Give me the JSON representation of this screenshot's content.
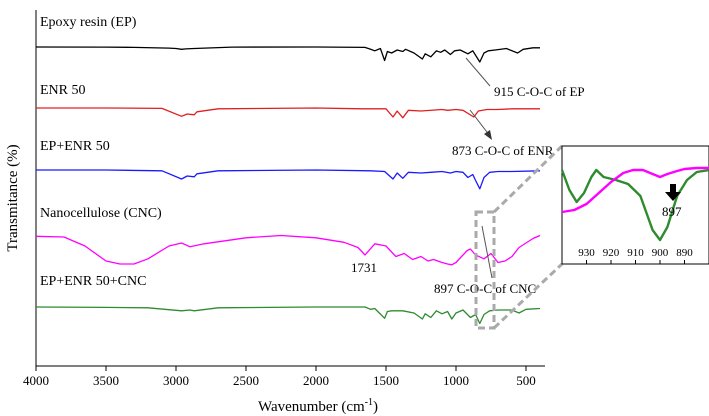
{
  "chart_data": {
    "type": "line",
    "xlabel": "Wavenumber (cm",
    "xlabel_sup": "-1",
    "xlabel_close": ")",
    "ylabel": "Transmitance (%)",
    "xlim": [
      4000,
      400
    ],
    "x_reversed": true,
    "x_ticks": [
      "4000",
      "3500",
      "3000",
      "2500",
      "2000",
      "1500",
      "1000",
      "500"
    ],
    "grid": false,
    "series": [
      {
        "name": "Epoxy resin (EP)",
        "color": "#000000",
        "points": [
          [
            4000,
            0
          ],
          [
            3500,
            -0.2
          ],
          [
            3300,
            -0.5
          ],
          [
            3050,
            -1.5
          ],
          [
            3000,
            -2
          ],
          [
            2960,
            -3
          ],
          [
            2930,
            -2.5
          ],
          [
            2870,
            -2
          ],
          [
            2600,
            -0.2
          ],
          [
            2000,
            0
          ],
          [
            1650,
            -0.5
          ],
          [
            1610,
            -3
          ],
          [
            1580,
            -5
          ],
          [
            1540,
            -2
          ],
          [
            1510,
            -18
          ],
          [
            1490,
            -6
          ],
          [
            1460,
            -8
          ],
          [
            1420,
            -4
          ],
          [
            1380,
            -6
          ],
          [
            1360,
            -3
          ],
          [
            1300,
            -8
          ],
          [
            1240,
            -16
          ],
          [
            1220,
            -9
          ],
          [
            1180,
            -13
          ],
          [
            1140,
            -5
          ],
          [
            1110,
            -7
          ],
          [
            1080,
            -4
          ],
          [
            1040,
            -10
          ],
          [
            1010,
            -5
          ],
          [
            970,
            -4
          ],
          [
            915,
            -9
          ],
          [
            880,
            -5
          ],
          [
            830,
            -20
          ],
          [
            800,
            -8
          ],
          [
            770,
            -5
          ],
          [
            720,
            -4
          ],
          [
            640,
            -2
          ],
          [
            560,
            -8
          ],
          [
            520,
            -3
          ],
          [
            450,
            -1
          ],
          [
            400,
            -1
          ]
        ]
      },
      {
        "name": "ENR 50",
        "color": "#e02020",
        "points": [
          [
            4000,
            0
          ],
          [
            3500,
            0
          ],
          [
            3100,
            -0.5
          ],
          [
            2960,
            -11
          ],
          [
            2920,
            -8
          ],
          [
            2870,
            -9
          ],
          [
            2850,
            -5
          ],
          [
            2700,
            -1
          ],
          [
            2000,
            0
          ],
          [
            1670,
            -1
          ],
          [
            1500,
            -1
          ],
          [
            1450,
            -12
          ],
          [
            1420,
            -4
          ],
          [
            1380,
            -13
          ],
          [
            1340,
            -3
          ],
          [
            1250,
            -4
          ],
          [
            1100,
            -2
          ],
          [
            1060,
            -3
          ],
          [
            1000,
            -2
          ],
          [
            950,
            -3
          ],
          [
            873,
            -12
          ],
          [
            840,
            -4
          ],
          [
            780,
            -2
          ],
          [
            700,
            -2
          ],
          [
            600,
            -1
          ],
          [
            400,
            -1
          ]
        ]
      },
      {
        "name": "EP+ENR 50",
        "color": "#1a1aff",
        "points": [
          [
            4000,
            0
          ],
          [
            3500,
            0
          ],
          [
            3100,
            -1
          ],
          [
            2960,
            -12
          ],
          [
            2920,
            -8
          ],
          [
            2870,
            -9
          ],
          [
            2850,
            -5
          ],
          [
            2700,
            -1
          ],
          [
            2000,
            0
          ],
          [
            1610,
            -1
          ],
          [
            1510,
            -2
          ],
          [
            1450,
            -12
          ],
          [
            1420,
            -4
          ],
          [
            1380,
            -11
          ],
          [
            1340,
            -3
          ],
          [
            1250,
            -4
          ],
          [
            1180,
            -3
          ],
          [
            1100,
            -2
          ],
          [
            1040,
            -4
          ],
          [
            1000,
            -2
          ],
          [
            950,
            -3
          ],
          [
            915,
            -10
          ],
          [
            880,
            -6
          ],
          [
            860,
            -14
          ],
          [
            830,
            -25
          ],
          [
            800,
            -10
          ],
          [
            760,
            -3
          ],
          [
            700,
            -2
          ],
          [
            600,
            -2
          ],
          [
            400,
            -1
          ]
        ]
      },
      {
        "name": "Nanocellulose (CNC)",
        "color": "#ff00ff",
        "points": [
          [
            4000,
            5
          ],
          [
            3800,
            4
          ],
          [
            3650,
            -8
          ],
          [
            3500,
            -28
          ],
          [
            3400,
            -32
          ],
          [
            3300,
            -32
          ],
          [
            3200,
            -25
          ],
          [
            3050,
            -8
          ],
          [
            2960,
            -4
          ],
          [
            2900,
            -9
          ],
          [
            2800,
            -5
          ],
          [
            2500,
            3
          ],
          [
            2250,
            6
          ],
          [
            2000,
            3
          ],
          [
            1800,
            -3
          ],
          [
            1700,
            -10
          ],
          [
            1650,
            -20
          ],
          [
            1580,
            -5
          ],
          [
            1500,
            -8
          ],
          [
            1430,
            -22
          ],
          [
            1370,
            -18
          ],
          [
            1310,
            -26
          ],
          [
            1250,
            -22
          ],
          [
            1200,
            -28
          ],
          [
            1160,
            -26
          ],
          [
            1100,
            -30
          ],
          [
            1060,
            -32
          ],
          [
            1030,
            -33
          ],
          [
            1000,
            -30
          ],
          [
            960,
            -22
          ],
          [
            920,
            -14
          ],
          [
            897,
            -12
          ],
          [
            860,
            -20
          ],
          [
            800,
            -25
          ],
          [
            750,
            -18
          ],
          [
            700,
            -30
          ],
          [
            650,
            -28
          ],
          [
            600,
            -22
          ],
          [
            550,
            -10
          ],
          [
            450,
            2
          ],
          [
            400,
            6
          ]
        ]
      },
      {
        "name": "EP+ENR 50+CNC",
        "color": "#2e8b2e",
        "points": [
          [
            4000,
            0
          ],
          [
            3500,
            -0.5
          ],
          [
            3200,
            -1
          ],
          [
            2960,
            -5
          ],
          [
            2900,
            -4
          ],
          [
            2870,
            -5
          ],
          [
            2700,
            -1
          ],
          [
            2000,
            0
          ],
          [
            1650,
            0
          ],
          [
            1610,
            -3
          ],
          [
            1580,
            -2
          ],
          [
            1510,
            -15
          ],
          [
            1490,
            -6
          ],
          [
            1460,
            -5
          ],
          [
            1380,
            -5
          ],
          [
            1300,
            -8
          ],
          [
            1240,
            -16
          ],
          [
            1220,
            -9
          ],
          [
            1180,
            -14
          ],
          [
            1140,
            -5
          ],
          [
            1100,
            -9
          ],
          [
            1060,
            -6
          ],
          [
            1030,
            -16
          ],
          [
            1000,
            -8
          ],
          [
            950,
            -4
          ],
          [
            897,
            -14
          ],
          [
            860,
            -10
          ],
          [
            830,
            -22
          ],
          [
            800,
            -10
          ],
          [
            760,
            -5
          ],
          [
            700,
            -4
          ],
          [
            600,
            -4
          ],
          [
            550,
            -8
          ],
          [
            500,
            -3
          ],
          [
            400,
            -2
          ]
        ]
      }
    ],
    "annotations": [
      {
        "text": "915 C-O-C of EP",
        "x": 915
      },
      {
        "text": "873 C-O-C of  ENR",
        "x": 873
      },
      {
        "text": "1731"
      },
      {
        "text": "897 C-O-C of CNC",
        "x": 897
      }
    ],
    "inset": {
      "xlim": [
        940,
        880
      ],
      "x_ticks": [
        "930",
        "920",
        "910",
        "900",
        "890"
      ],
      "marker_label": "897",
      "series": [
        {
          "color": "#2e8b2e",
          "points": [
            [
              940,
              10
            ],
            [
              937,
              30
            ],
            [
              934,
              42
            ],
            [
              931,
              33
            ],
            [
              928,
              17
            ],
            [
              926,
              10
            ],
            [
              923,
              17
            ],
            [
              918,
              20
            ],
            [
              913,
              24
            ],
            [
              908,
              36
            ],
            [
              903,
              70
            ],
            [
              900,
              80
            ],
            [
              897,
              67
            ],
            [
              893,
              36
            ],
            [
              889,
              20
            ],
            [
              885,
              12
            ],
            [
              880,
              10
            ]
          ]
        },
        {
          "color": "#ff00ff",
          "points": [
            [
              940,
              52
            ],
            [
              935,
              50
            ],
            [
              930,
              44
            ],
            [
              925,
              33
            ],
            [
              920,
              22
            ],
            [
              915,
              13
            ],
            [
              911,
              10
            ],
            [
              907,
              10
            ],
            [
              903,
              14
            ],
            [
              900,
              17
            ],
            [
              897,
              14
            ],
            [
              893,
              11
            ],
            [
              890,
              9
            ],
            [
              885,
              8
            ],
            [
              880,
              8
            ]
          ]
        }
      ]
    }
  }
}
